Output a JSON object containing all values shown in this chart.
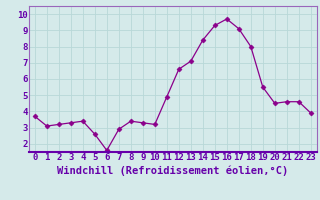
{
  "x": [
    0,
    1,
    2,
    3,
    4,
    5,
    6,
    7,
    8,
    9,
    10,
    11,
    12,
    13,
    14,
    15,
    16,
    17,
    18,
    19,
    20,
    21,
    22,
    23
  ],
  "y": [
    3.7,
    3.1,
    3.2,
    3.3,
    3.4,
    2.6,
    1.6,
    2.9,
    3.4,
    3.3,
    3.2,
    4.9,
    6.6,
    7.1,
    8.4,
    9.3,
    9.7,
    9.1,
    8.0,
    5.5,
    4.5,
    4.6,
    4.6,
    3.9
  ],
  "line_color": "#8b008b",
  "marker": "D",
  "marker_size": 2.5,
  "xlabel": "Windchill (Refroidissement éolien,°C)",
  "xlim": [
    -0.5,
    23.5
  ],
  "ylim": [
    1.5,
    10.5
  ],
  "yticks": [
    2,
    3,
    4,
    5,
    6,
    7,
    8,
    9,
    10
  ],
  "xticks": [
    0,
    1,
    2,
    3,
    4,
    5,
    6,
    7,
    8,
    9,
    10,
    11,
    12,
    13,
    14,
    15,
    16,
    17,
    18,
    19,
    20,
    21,
    22,
    23
  ],
  "background_color": "#d5eaea",
  "grid_color": "#b8d8d8",
  "tick_color": "#6600aa",
  "label_color": "#6600aa",
  "spine_color": "#9966bb",
  "tick_fontsize": 6.5,
  "xlabel_fontsize": 7.5
}
